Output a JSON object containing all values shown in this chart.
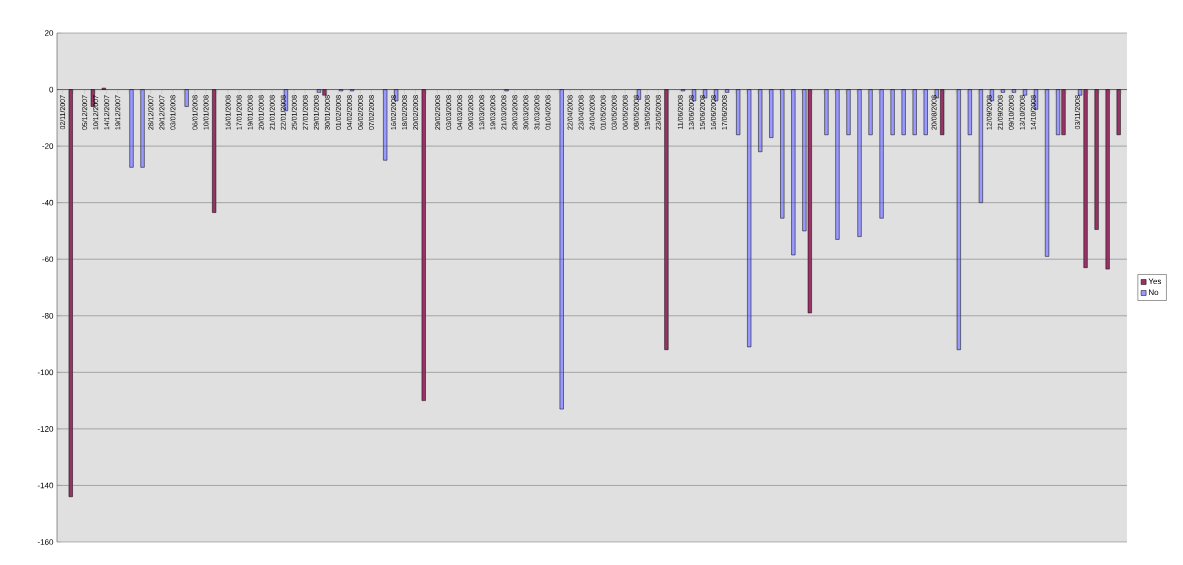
{
  "chart_data": {
    "type": "bar",
    "categories": [
      "02/11/2007",
      null,
      "05/12/2007",
      "10/12/2007",
      "14/12/2007",
      "19/12/2007",
      null,
      null,
      "28/12/2007",
      "29/12/2007",
      "03/01/2008",
      null,
      "06/01/2008",
      "10/01/2008",
      null,
      "16/01/2008",
      "17/01/2008",
      "19/01/2008",
      "20/01/2008",
      "21/01/2008",
      "22/01/2008",
      "25/01/2008",
      "27/01/2008",
      "29/01/2008",
      "30/01/2008",
      "01/02/2008",
      "04/02/2008",
      "06/02/2008",
      "07/02/2008",
      null,
      "16/02/2008",
      "18/02/2008",
      "20/02/2008",
      null,
      "29/02/2008",
      "03/03/2008",
      "04/03/2008",
      "09/03/2008",
      "13/03/2008",
      "19/03/2008",
      "21/03/2008",
      "29/03/2008",
      "30/03/2008",
      "31/03/2008",
      "01/04/2008",
      null,
      "22/04/2008",
      "23/04/2008",
      "24/04/2008",
      "01/05/2008",
      "03/05/2008",
      "06/05/2008",
      "08/05/2008",
      "19/05/2008",
      "23/05/2008",
      null,
      "11/06/2008",
      "13/06/2008",
      "15/06/2008",
      "16/06/2008",
      "17/06/2008",
      null,
      null,
      null,
      null,
      null,
      null,
      null,
      null,
      null,
      null,
      null,
      null,
      null,
      null,
      null,
      null,
      null,
      null,
      "20/08/2008",
      null,
      null,
      null,
      null,
      "12/09/2008",
      "21/09/2008",
      "09/10/2008",
      "13/10/2008",
      "14/10/2008",
      null,
      null,
      null,
      "03/11/2008",
      null,
      null,
      null,
      null
    ],
    "series": [
      {
        "name": "Yes",
        "color": "#993366",
        "values": [
          null,
          -144,
          null,
          -6,
          0.5,
          null,
          null,
          null,
          null,
          null,
          null,
          null,
          null,
          null,
          -43.5,
          null,
          null,
          null,
          null,
          null,
          null,
          null,
          null,
          null,
          -2,
          null,
          null,
          null,
          null,
          null,
          null,
          null,
          null,
          -110,
          null,
          null,
          null,
          null,
          null,
          null,
          null,
          null,
          null,
          null,
          null,
          null,
          null,
          null,
          null,
          null,
          null,
          null,
          null,
          null,
          null,
          -92,
          null,
          null,
          null,
          null,
          null,
          null,
          null,
          null,
          null,
          null,
          null,
          null,
          -79,
          null,
          null,
          null,
          null,
          null,
          null,
          null,
          null,
          null,
          null,
          null,
          -16,
          null,
          null,
          null,
          null,
          null,
          null,
          null,
          null,
          null,
          null,
          -16,
          null,
          -63,
          -49.5,
          -63.5,
          -16
        ]
      },
      {
        "name": "No",
        "color": "#9999ff",
        "values": [
          null,
          null,
          null,
          null,
          null,
          null,
          -27.5,
          -27.5,
          null,
          null,
          null,
          -6,
          null,
          null,
          null,
          null,
          null,
          null,
          null,
          null,
          -7.5,
          null,
          null,
          -1,
          null,
          -0.5,
          -0.5,
          null,
          null,
          -25,
          -4,
          null,
          null,
          null,
          null,
          null,
          null,
          null,
          null,
          null,
          -0.5,
          null,
          null,
          null,
          null,
          -113,
          null,
          null,
          null,
          null,
          null,
          null,
          -3.5,
          null,
          null,
          null,
          -0.5,
          -4,
          -3,
          -4,
          -1,
          -16,
          -91,
          -22,
          -17,
          -45.5,
          -58.5,
          -50,
          null,
          -16,
          -53,
          -16,
          -52,
          -16,
          -45.5,
          -16,
          -16,
          -16,
          -16,
          -3,
          null,
          -92,
          -16,
          -40,
          -4,
          -1,
          -1,
          -2,
          -7,
          -59,
          -16,
          null,
          -2,
          null,
          null,
          null,
          null
        ]
      }
    ],
    "ylim": [
      -160,
      20
    ],
    "yticks": [
      -160,
      -140,
      -120,
      -100,
      -80,
      -60,
      -40,
      -20,
      0,
      20
    ],
    "grid": "y",
    "legend": "right"
  }
}
